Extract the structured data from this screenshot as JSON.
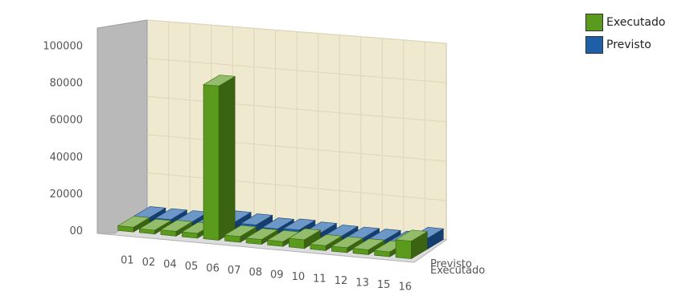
{
  "chart_data": {
    "type": "bar",
    "categories": [
      "01",
      "02",
      "04",
      "05",
      "06",
      "07",
      "08",
      "09",
      "10",
      "11",
      "12",
      "13",
      "15",
      "16"
    ],
    "series": [
      {
        "name": "Executado",
        "color": "#5a9a1c",
        "values": [
          2500,
          2000,
          2500,
          2500,
          80000,
          3000,
          2500,
          2500,
          4500,
          2500,
          2500,
          2500,
          2500,
          9000
        ]
      },
      {
        "name": "Previsto",
        "color": "#1e5fa8",
        "values": [
          2500,
          2500,
          2500,
          2500,
          4500,
          4000,
          3000,
          3500,
          3000,
          2500,
          2500,
          2500,
          2500,
          5500
        ]
      }
    ],
    "yticks": [
      "00",
      "20000",
      "40000",
      "60000",
      "80000",
      "100000"
    ],
    "ylim": [
      0,
      100000
    ],
    "depth_labels": [
      "Previsto",
      "Executado"
    ],
    "legend_position": "top-right",
    "grid": true
  }
}
